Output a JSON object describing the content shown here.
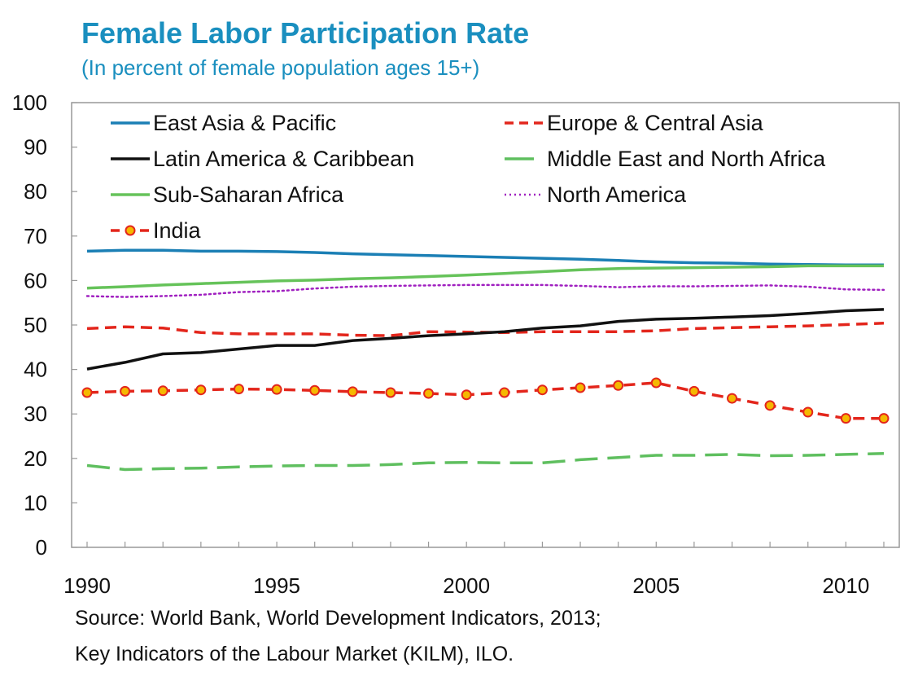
{
  "title": "Female Labor Participation Rate",
  "subtitle": "(In percent of female population ages 15+)",
  "source": {
    "line1": "Source:  World Bank, World Development Indicators, 2013;",
    "line2": "Key Indicators of the Labour Market (KILM), ILO."
  },
  "colors": {
    "title": "#1a8fbf",
    "axis": "#999999",
    "text": "#111111"
  },
  "chart_data": {
    "type": "line",
    "title": "Female Labor Participation Rate",
    "subtitle": "(In percent of female population ages 15+)",
    "xlabel": "",
    "ylabel": "",
    "x": [
      1990,
      1991,
      1992,
      1993,
      1994,
      1995,
      1996,
      1997,
      1998,
      1999,
      2000,
      2001,
      2002,
      2003,
      2004,
      2005,
      2006,
      2007,
      2008,
      2009,
      2010,
      2011
    ],
    "xlim": [
      1990,
      2011
    ],
    "ylim": [
      0,
      100
    ],
    "x_ticks": [
      1990,
      1995,
      2000,
      2005,
      2010
    ],
    "y_ticks": [
      0,
      10,
      20,
      30,
      40,
      50,
      60,
      70,
      80,
      90,
      100
    ],
    "grid": false,
    "legend_position": "top",
    "series": [
      {
        "name": "East Asia & Pacific",
        "color": "#1b7fb5",
        "style": "solid",
        "values": [
          66.6,
          66.8,
          66.8,
          66.6,
          66.6,
          66.5,
          66.3,
          66.0,
          65.8,
          65.6,
          65.4,
          65.2,
          65.0,
          64.8,
          64.5,
          64.2,
          64.0,
          63.9,
          63.7,
          63.6,
          63.5,
          63.5
        ]
      },
      {
        "name": "Europe & Central Asia",
        "color": "#e3261c",
        "style": "dash",
        "values": [
          49.2,
          49.6,
          49.3,
          48.3,
          48.0,
          48.0,
          48.0,
          47.7,
          47.6,
          48.5,
          48.4,
          48.3,
          48.5,
          48.5,
          48.5,
          48.7,
          49.2,
          49.4,
          49.6,
          49.8,
          50.1,
          50.4
        ]
      },
      {
        "name": "Latin America & Caribbean",
        "color": "#111111",
        "style": "solid",
        "values": [
          40.1,
          41.6,
          43.5,
          43.8,
          44.6,
          45.4,
          45.4,
          46.5,
          47.0,
          47.6,
          48.0,
          48.5,
          49.3,
          49.8,
          50.8,
          51.3,
          51.5,
          51.8,
          52.1,
          52.6,
          53.2,
          53.5
        ]
      },
      {
        "name": "Middle East and North Africa",
        "color": "#5fbf5f",
        "style": "longdash",
        "values": [
          18.4,
          17.5,
          17.7,
          17.8,
          18.1,
          18.3,
          18.4,
          18.4,
          18.6,
          19.0,
          19.1,
          19.0,
          19.0,
          19.7,
          20.2,
          20.7,
          20.7,
          20.9,
          20.6,
          20.7,
          20.9,
          21.1
        ]
      },
      {
        "name": "Sub-Saharan Africa",
        "color": "#66c35a",
        "style": "solid",
        "values": [
          58.3,
          58.6,
          59.0,
          59.3,
          59.6,
          59.9,
          60.1,
          60.4,
          60.6,
          60.9,
          61.2,
          61.6,
          62.0,
          62.4,
          62.7,
          62.8,
          62.9,
          63.0,
          63.1,
          63.3,
          63.3,
          63.3
        ]
      },
      {
        "name": "North America",
        "color": "#a020c0",
        "style": "dot",
        "values": [
          56.5,
          56.3,
          56.5,
          56.8,
          57.4,
          57.6,
          58.2,
          58.6,
          58.8,
          58.9,
          59.0,
          59.0,
          59.0,
          58.8,
          58.5,
          58.7,
          58.7,
          58.8,
          58.9,
          58.6,
          58.0,
          57.9
        ]
      },
      {
        "name": "India",
        "color": "#e3261c",
        "style": "dash-marker",
        "marker_color": "#f5b800",
        "values": [
          34.8,
          35.1,
          35.2,
          35.4,
          35.6,
          35.5,
          35.3,
          35.0,
          34.8,
          34.6,
          34.3,
          34.8,
          35.4,
          35.9,
          36.4,
          37.0,
          35.1,
          33.5,
          31.9,
          30.4,
          29.0,
          29.0
        ]
      }
    ]
  }
}
